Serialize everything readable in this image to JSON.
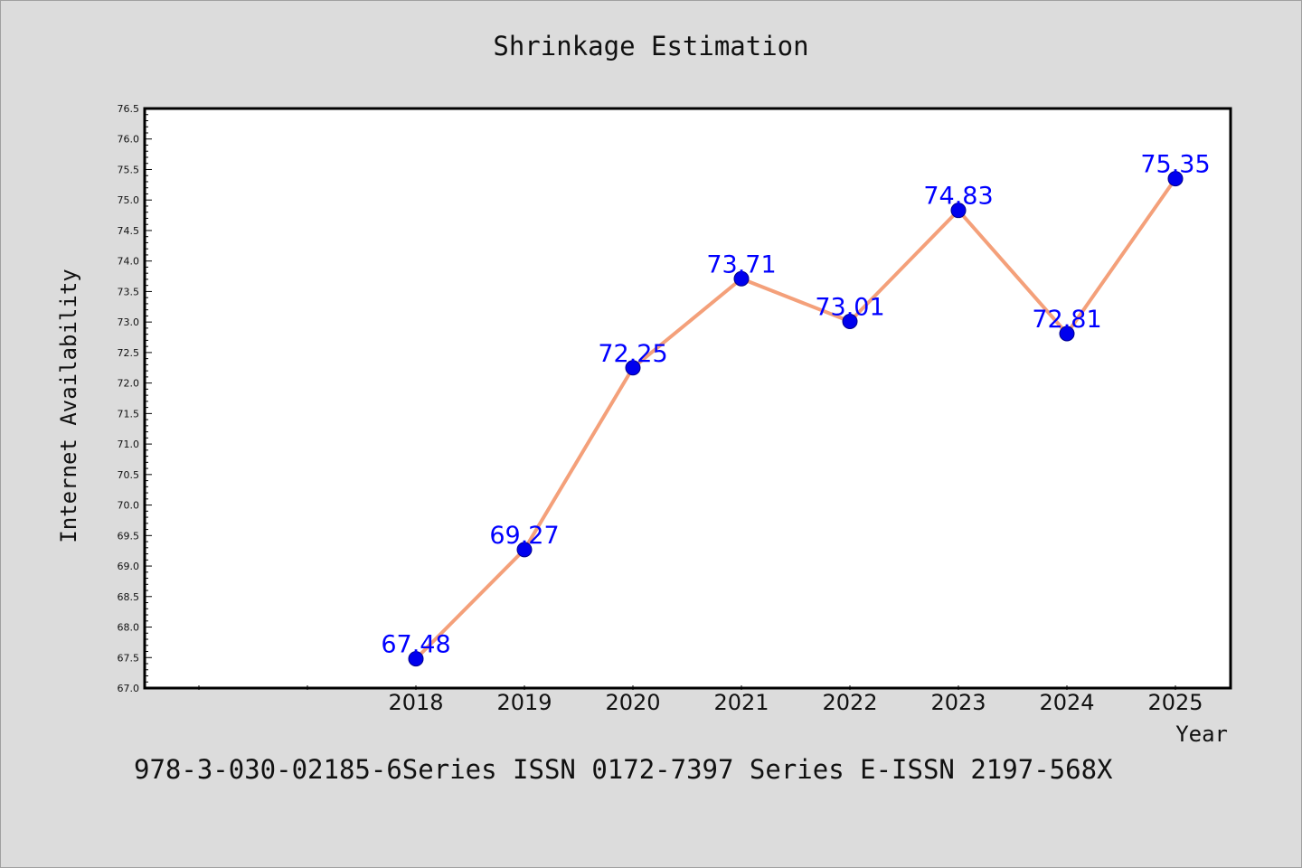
{
  "chart_data": {
    "type": "line",
    "title": "Shrinkage Estimation",
    "xlabel": "Year",
    "ylabel": "Internet Availability",
    "categories": [
      "2018",
      "2019",
      "2020",
      "2021",
      "2022",
      "2023",
      "2024",
      "2025"
    ],
    "values": [
      67.48,
      69.27,
      72.25,
      73.71,
      73.01,
      74.83,
      72.81,
      75.35
    ],
    "data_labels": [
      "67.48",
      "69.27",
      "72.25",
      "73.71",
      "73.01",
      "74.83",
      "72.81",
      "75.35"
    ],
    "ylim": [
      67.0,
      76.5
    ],
    "y_ticks": [
      "67.0",
      "67.5",
      "68.0",
      "68.5",
      "69.0",
      "69.5",
      "70.0",
      "70.5",
      "71.0",
      "71.5",
      "72.0",
      "72.5",
      "73.0",
      "73.5",
      "74.0",
      "74.5",
      "75.0",
      "75.5",
      "76.0",
      "76.5"
    ],
    "grid": false,
    "colors": {
      "line": "#f4a07a",
      "marker": "#0000ee",
      "label": "#0000ff",
      "background": "#dcdcdc",
      "plot_background": "#ffffff"
    }
  },
  "caption": "978-3-030-02185-6Series ISSN 0172-7397 Series E-ISSN 2197-568X"
}
